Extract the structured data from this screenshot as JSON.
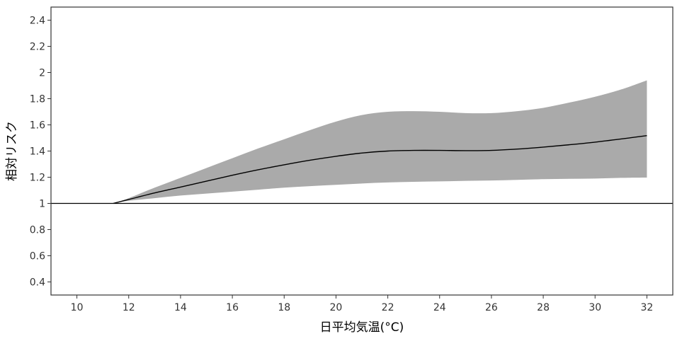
{
  "chart_data": {
    "type": "line",
    "xlabel": "日平均気温(°C)",
    "ylabel": "相対リスク",
    "xlim": [
      9.0,
      33.0
    ],
    "ylim": [
      0.3,
      2.5
    ],
    "x_ticks": [
      10,
      12,
      14,
      16,
      18,
      20,
      22,
      24,
      26,
      28,
      30,
      32
    ],
    "y_ticks": [
      0.4,
      0.6,
      0.8,
      1,
      1.2,
      1.4,
      1.6,
      1.8,
      2,
      2.2,
      2.4
    ],
    "x_tick_labels": [
      "10",
      "12",
      "14",
      "16",
      "18",
      "20",
      "22",
      "24",
      "26",
      "28",
      "30",
      "32"
    ],
    "y_tick_labels": [
      "0.4",
      "0.6",
      "0.8",
      "1",
      "1.2",
      "1.4",
      "1.6",
      "1.8",
      "2",
      "2.2",
      "2.4"
    ],
    "reference_line": 1,
    "grid": false,
    "series": [
      {
        "x": [
          11.4,
          12,
          13,
          14,
          15,
          16,
          17,
          18,
          19,
          20,
          21,
          22,
          23,
          24,
          25,
          26,
          27,
          28,
          29,
          30,
          31,
          32
        ],
        "y": [
          1.0,
          1.03,
          1.08,
          1.125,
          1.17,
          1.215,
          1.257,
          1.295,
          1.33,
          1.36,
          1.385,
          1.4,
          1.405,
          1.405,
          1.403,
          1.405,
          1.415,
          1.43,
          1.448,
          1.468,
          1.492,
          1.518
        ],
        "lower": [
          1.0,
          1.02,
          1.04,
          1.06,
          1.075,
          1.09,
          1.105,
          1.12,
          1.132,
          1.142,
          1.152,
          1.16,
          1.165,
          1.168,
          1.172,
          1.175,
          1.18,
          1.185,
          1.188,
          1.19,
          1.195,
          1.197
        ],
        "upper": [
          1.0,
          1.04,
          1.12,
          1.195,
          1.27,
          1.345,
          1.42,
          1.49,
          1.56,
          1.625,
          1.675,
          1.7,
          1.705,
          1.7,
          1.69,
          1.69,
          1.705,
          1.73,
          1.77,
          1.815,
          1.87,
          1.94
        ],
        "line_color": "#000000",
        "band_color": "#aaaaaa"
      }
    ]
  }
}
